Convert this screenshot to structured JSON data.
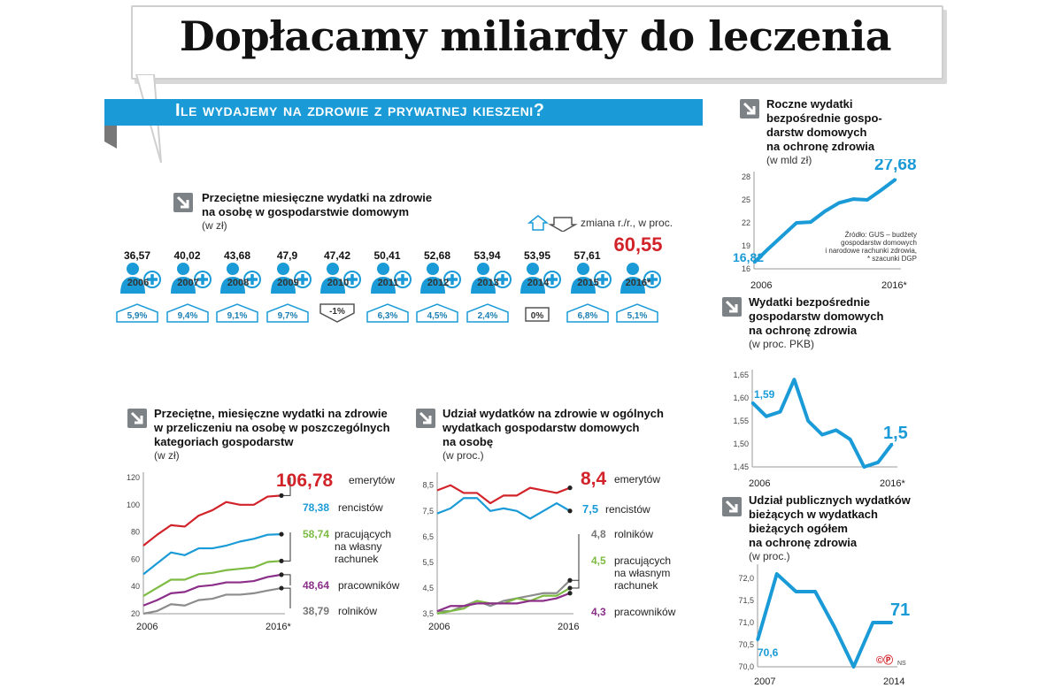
{
  "headline": "Dopłacamy miliardy  do leczenia",
  "banner": "Ile wydajemy na zdrowie z prywatnej kieszeni?",
  "colors": {
    "blue": "#1a9bd7",
    "red": "#d2232a",
    "green": "#7dbb42",
    "purple": "#8b2f88",
    "gray": "#8c8c8c",
    "arrow": "#7d8287"
  },
  "monthly": {
    "title_l1": "Przeciętne miesięczne wydatki na zdrowie",
    "title_l2": "na osobę w gospodarstwie domowym",
    "unit": "(w zł)",
    "legend": "zmiana r./r., w proc.",
    "years": [
      "2006",
      "2007",
      "2008",
      "2009",
      "2010",
      "2011",
      "2012",
      "2013",
      "2014",
      "2015",
      "2016*"
    ],
    "values": [
      "36,57",
      "40,02",
      "43,68",
      "47,9",
      "47,42",
      "50,41",
      "52,68",
      "53,94",
      "53,95",
      "57,61",
      "60,55"
    ],
    "changes": [
      "5,9%",
      "9,4%",
      "9,1%",
      "9,7%",
      "-1%",
      "6,3%",
      "4,5%",
      "2,4%",
      "0%",
      "6,8%",
      "5,1%"
    ],
    "change_dir": [
      "up",
      "up",
      "up",
      "up",
      "down",
      "up",
      "up",
      "up",
      "flat",
      "up",
      "up"
    ]
  },
  "annual": {
    "title_l1": "Roczne wydatki",
    "title_l2": "bezpośrednie gospo-",
    "title_l3": "darstw domowych",
    "title_l4": "na ochronę zdrowia",
    "unit": "(w mld zł)",
    "first_label": "16,82",
    "last_label": "27,68",
    "x_start": "2006",
    "x_end": "2016*",
    "source_l1": "Źródło: GUS – budżety",
    "source_l2": "gospodarstw domowych",
    "source_l3": "i narodowe rachunki zdrowia,",
    "source_l4": "* szacunki DGP"
  },
  "gdp": {
    "title_l1": "Wydatki bezpośrednie",
    "title_l2": "gospodarstw domowych",
    "title_l3": "na ochronę zdrowia",
    "unit": "(w proc. PKB)",
    "first_label": "1,59",
    "last_label": "1,5",
    "x_start": "2006",
    "x_end": "2016*"
  },
  "public": {
    "title_l1": "Udział publicznych wydatków",
    "title_l2": "bieżących w wydatkach",
    "title_l3": "bieżących ogółem",
    "title_l4": "na ochronę zdrowia",
    "unit": "(w proc.)",
    "first_label": "70,6",
    "last_label": "71",
    "x_start": "2007",
    "x_end": "2014",
    "credit": "©Ⓟ",
    "credit_initials": "NS"
  },
  "categories": {
    "title_l1": "Przeciętne, miesięczne wydatki na zdrowie",
    "title_l2": "w przeliczeniu na osobę w poszczególnych",
    "title_l3": "kategoriach gospodarstw",
    "unit": "(w zł)",
    "x_start": "2006",
    "x_end": "2016*",
    "labels": {
      "emeryci_val": "106,78",
      "emeryci": "emerytów",
      "rencisci_val": "78,38",
      "rencisci": "rencistów",
      "pracujacy_val": "58,74",
      "pracujacy_l1": "pracujących",
      "pracujacy_l2": "na własny",
      "pracujacy_l3": "rachunek",
      "pracownicy_val": "48,64",
      "pracownicy": "pracowników",
      "rolnicy_val": "38,79",
      "rolnicy": "rolników"
    }
  },
  "share": {
    "title_l1": "Udział wydatków na zdrowie w ogólnych",
    "title_l2": "wydatkach gospodarstw domowych",
    "title_l3": "na osobę",
    "unit": "(w proc.)",
    "x_start": "2006",
    "x_end": "2016",
    "labels": {
      "emeryci_val": "8,4",
      "emeryci": "emerytów",
      "rencisci_val": "7,5",
      "rencisci": "rencistów",
      "rolnicy_val": "4,8",
      "rolnicy": "rolników",
      "pracujacy_val": "4,5",
      "pracujacy_l1": "pracujących",
      "pracujacy_l2": "na własnym",
      "pracujacy_l3": "rachunek",
      "pracownicy_val": "4,3",
      "pracownicy": "pracowników"
    }
  },
  "chart_data": [
    {
      "type": "line",
      "title": "Roczne wydatki bezpośrednie gospodarstw domowych na ochronę zdrowia (w mld zł)",
      "x": [
        2006,
        2007,
        2008,
        2009,
        2010,
        2011,
        2012,
        2013,
        2014,
        2015,
        2016
      ],
      "y": [
        16.82,
        18.6,
        20.3,
        22.0,
        22.1,
        23.5,
        24.6,
        25.1,
        25.0,
        26.3,
        27.68
      ],
      "yticks": [
        16,
        19,
        22,
        25,
        28
      ],
      "ylim": [
        16,
        28
      ]
    },
    {
      "type": "line",
      "title": "Wydatki bezpośrednie gospodarstw domowych na ochronę zdrowia (w proc. PKB)",
      "x": [
        2006,
        2007,
        2008,
        2009,
        2010,
        2011,
        2012,
        2013,
        2014,
        2015,
        2016
      ],
      "y": [
        1.59,
        1.56,
        1.57,
        1.64,
        1.55,
        1.52,
        1.53,
        1.51,
        1.45,
        1.46,
        1.5
      ],
      "yticks": [
        "1,45",
        "1,50",
        "1,55",
        "1,60",
        "1,65"
      ],
      "ylim": [
        1.45,
        1.65
      ]
    },
    {
      "type": "line",
      "title": "Udział publicznych wydatków bieżących w wydatkach bieżących ogółem na ochronę zdrowia (w proc.)",
      "x": [
        2007,
        2008,
        2009,
        2010,
        2011,
        2012,
        2013,
        2014
      ],
      "y": [
        70.6,
        72.1,
        71.7,
        71.7,
        70.9,
        70.0,
        71.0,
        71.0
      ],
      "yticks": [
        "70,0",
        "70,5",
        "71,0",
        "71,5",
        "72,0"
      ],
      "ylim": [
        70,
        72.2
      ]
    },
    {
      "type": "line",
      "title": "Przeciętne, miesięczne wydatki na zdrowie w przeliczeniu na osobę w poszczególnych kategoriach gospodarstw (w zł)",
      "x": [
        2006,
        2007,
        2008,
        2009,
        2010,
        2011,
        2012,
        2013,
        2014,
        2015,
        2016
      ],
      "ylim": [
        20,
        120
      ],
      "yticks": [
        20,
        40,
        60,
        80,
        100,
        120
      ],
      "series": [
        {
          "name": "emerytów",
          "color": "#d2232a",
          "values": [
            70,
            78,
            85,
            84,
            92,
            96,
            102,
            100,
            100,
            106,
            106.78
          ]
        },
        {
          "name": "rencistów",
          "color": "#1a9bd7",
          "values": [
            49,
            57,
            65,
            63,
            68,
            68,
            70,
            73,
            75,
            78,
            78.38
          ]
        },
        {
          "name": "pracujących na własny rachunek",
          "color": "#7dbb42",
          "values": [
            33,
            39,
            45,
            45,
            49,
            50,
            52,
            53,
            54,
            58,
            58.74
          ]
        },
        {
          "name": "pracowników",
          "color": "#8b2f88",
          "values": [
            26,
            30,
            35,
            36,
            40,
            41,
            43,
            43,
            44,
            47,
            48.64
          ]
        },
        {
          "name": "rolników",
          "color": "#8c8c8c",
          "values": [
            20,
            22,
            27,
            26,
            30,
            31,
            34,
            34,
            35,
            37,
            38.79
          ]
        }
      ]
    },
    {
      "type": "line",
      "title": "Udział wydatków na zdrowie w ogólnych wydatkach gospodarstw domowych na osobę (w proc.)",
      "x": [
        2006,
        2007,
        2008,
        2009,
        2010,
        2011,
        2012,
        2013,
        2014,
        2015,
        2016
      ],
      "ylim": [
        3.5,
        8.8
      ],
      "yticks": [
        "3,5",
        "4,5",
        "5,5",
        "6,5",
        "7,5",
        "8,5"
      ],
      "series": [
        {
          "name": "emerytów",
          "color": "#d2232a",
          "values": [
            8.3,
            8.5,
            8.2,
            8.2,
            7.8,
            8.1,
            8.1,
            8.4,
            8.3,
            8.2,
            8.4
          ]
        },
        {
          "name": "rencistów",
          "color": "#1a9bd7",
          "values": [
            7.4,
            7.6,
            8.0,
            8.0,
            7.5,
            7.6,
            7.5,
            7.2,
            7.5,
            7.8,
            7.5
          ]
        },
        {
          "name": "rolników",
          "color": "#8c8c8c",
          "values": [
            3.6,
            3.6,
            3.8,
            4.0,
            3.8,
            4.0,
            4.1,
            4.2,
            4.3,
            4.3,
            4.8
          ]
        },
        {
          "name": "pracujących na własnym rachunek",
          "color": "#7dbb42",
          "values": [
            3.5,
            3.6,
            3.7,
            4.0,
            3.9,
            3.9,
            4.1,
            4.0,
            4.2,
            4.2,
            4.5
          ]
        },
        {
          "name": "pracowników",
          "color": "#8b2f88",
          "values": [
            3.6,
            3.8,
            3.8,
            3.9,
            3.9,
            3.9,
            3.9,
            4.0,
            4.0,
            4.1,
            4.3
          ]
        }
      ]
    }
  ]
}
